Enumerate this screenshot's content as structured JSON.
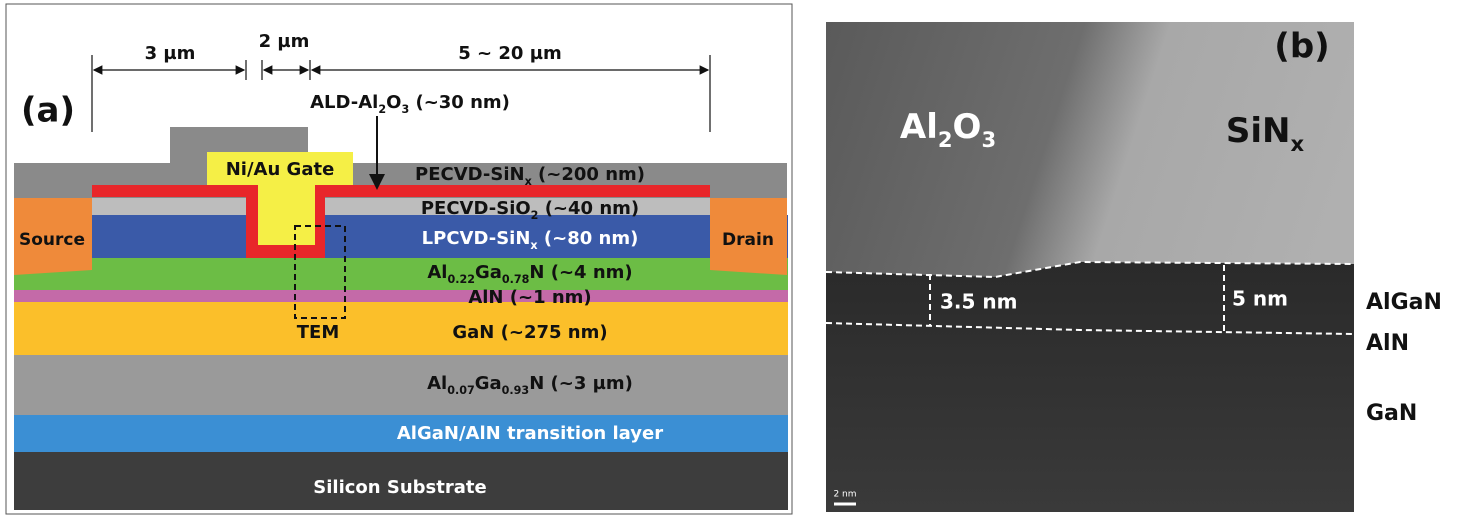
{
  "panel_a": {
    "label": "(a)",
    "dimensions": [
      "3 µm",
      "2 µm",
      "5 ~ 20 µm"
    ],
    "ald_label": [
      {
        "t": "ALD-Al"
      },
      {
        "sub": "2"
      },
      {
        "t": "O"
      },
      {
        "sub": "3"
      },
      {
        "t": " (~30 nm)"
      }
    ],
    "gate": "Ni/Au Gate",
    "source": "Source",
    "drain": "Drain",
    "tem": "TEM",
    "layers": [
      [
        {
          "t": "PECVD-SiN"
        },
        {
          "sub": "x"
        },
        {
          "t": " (~200 nm)"
        }
      ],
      [
        {
          "t": "PECVD-SiO"
        },
        {
          "sub": "2"
        },
        {
          "t": " (~40 nm)"
        }
      ],
      [
        {
          "t": "LPCVD-SiN"
        },
        {
          "sub": "x"
        },
        {
          "t": " (~80 nm)"
        }
      ],
      [
        {
          "t": "Al"
        },
        {
          "sub": "0.22"
        },
        {
          "t": "Ga"
        },
        {
          "sub": "0.78"
        },
        {
          "t": "N (~4 nm)"
        }
      ],
      [
        {
          "t": "AlN (~1 nm)"
        }
      ],
      [
        {
          "t": "GaN (~275 nm)"
        }
      ],
      [
        {
          "t": "Al"
        },
        {
          "sub": "0.07"
        },
        {
          "t": "Ga"
        },
        {
          "sub": "0.93"
        },
        {
          "t": "N (~3 µm)"
        }
      ],
      [
        {
          "t": "AlGaN/AlN transition layer"
        }
      ],
      [
        {
          "t": "Silicon Substrate"
        }
      ]
    ]
  },
  "panel_b": {
    "label": "(b)",
    "regions": [
      [
        {
          "t": "Al"
        },
        {
          "sub": "2"
        },
        {
          "t": "O"
        },
        {
          "sub": "3"
        }
      ],
      [
        {
          "t": "SiN"
        },
        {
          "sub": "x"
        }
      ]
    ],
    "thicknesses": [
      "3.5 nm",
      "5 nm"
    ],
    "side_labels": [
      "AlGaN",
      "AlN",
      "GaN"
    ],
    "scale_bar": "2 nm"
  }
}
